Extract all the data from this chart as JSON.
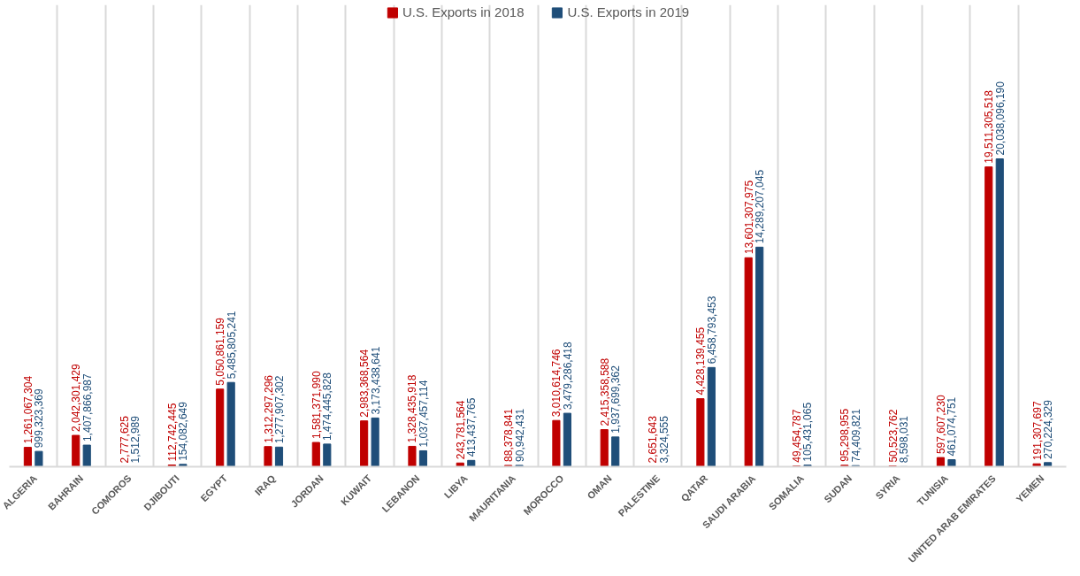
{
  "chart_data": {
    "type": "bar",
    "categories": [
      "ALGERIA",
      "BAHRAIN",
      "COMOROS",
      "DJIBOUTI",
      "EGYPT",
      "IRAQ",
      "JORDAN",
      "KUWAIT",
      "LEBANON",
      "LIBYA",
      "MAURITANIA",
      "MOROCCO",
      "OMAN",
      "PALESTINE",
      "QATAR",
      "SAUDI ARABIA",
      "SOMALIA",
      "SUDAN",
      "SYRIA",
      "TUNISIA",
      "UNITED ARAB EMIRATES",
      "YEMEN"
    ],
    "series": [
      {
        "name": "U.S. Exports in 2018",
        "color": "#c00000",
        "values": [
          1261067304,
          2042301429,
          2777625,
          112742445,
          5050861159,
          1312297296,
          1581371990,
          2983368564,
          1328435918,
          243781564,
          88378841,
          3010614746,
          2415358588,
          2651643,
          4428139455,
          13601307975,
          49454787,
          95298955,
          50523762,
          597607230,
          19511305518,
          191307697
        ],
        "value_labels": [
          "1,261,067,304",
          "2,042,301,429",
          "2,777,625",
          "112,742,445",
          "5,050,861,159",
          "1,312,297,296",
          "1,581,371,990",
          "2,983,368,564",
          "1,328,435,918",
          "243,781,564",
          "88,378,841",
          "3,010,614,746",
          "2,415,358,588",
          "2,651,643",
          "4,428,139,455",
          "13,601,307,975",
          "49,454,787",
          "95,298,955",
          "50,523,762",
          "597,607,230",
          "19,511,305,518",
          "191,307,697"
        ]
      },
      {
        "name": "U.S. Exports in 2019",
        "color": "#1f4e79",
        "values": [
          999323369,
          1407866987,
          1512989,
          154082649,
          5485805241,
          1277907302,
          1474445828,
          3173438641,
          1037457114,
          413437765,
          90942431,
          3479286418,
          1937699362,
          3324555,
          6458793453,
          14289207045,
          105431065,
          74409821,
          8598031,
          461074751,
          20038096190,
          270224329
        ],
        "value_labels": [
          "999,323,369",
          "1,407,866,987",
          "1,512,989",
          "154,082,649",
          "5,485,805,241",
          "1,277,907,302",
          "1,474,445,828",
          "3,173,438,641",
          "1,037,457,114",
          "413,437,765",
          "90,942,431",
          "3,479,286,418",
          "1,937,699,362",
          "3,324,555",
          "6,458,793,453",
          "14,289,207,045",
          "105,431,065",
          "74,409,821",
          "8,598,031",
          "461,074,751",
          "20,038,096,190",
          "270,224,329"
        ]
      }
    ],
    "grid": "x",
    "legend": "top"
  }
}
